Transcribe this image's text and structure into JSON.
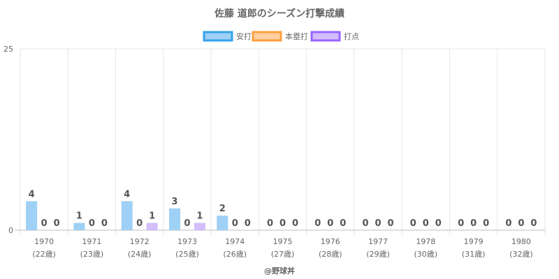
{
  "chart_data": {
    "type": "bar",
    "title": "佐藤 道郎のシーズン打撃成績",
    "categories": [
      "1970",
      "1971",
      "1972",
      "1973",
      "1974",
      "1975",
      "1976",
      "1977",
      "1978",
      "1979",
      "1980"
    ],
    "ages": [
      "(22歳)",
      "(23歳)",
      "(24歳)",
      "(25歳)",
      "(26歳)",
      "(27歳)",
      "(28歳)",
      "(29歳)",
      "(30歳)",
      "(31歳)",
      "(32歳)"
    ],
    "series": [
      {
        "name": "安打",
        "values": [
          4,
          1,
          4,
          3,
          2,
          0,
          0,
          0,
          0,
          0,
          0
        ],
        "fill": "#9fd0f5",
        "stroke": "#36a2eb"
      },
      {
        "name": "本塁打",
        "values": [
          0,
          0,
          0,
          0,
          0,
          0,
          0,
          0,
          0,
          0,
          0
        ],
        "fill": "#ffcf9f",
        "stroke": "#ff9f40"
      },
      {
        "name": "打点",
        "values": [
          0,
          0,
          1,
          1,
          0,
          0,
          0,
          0,
          0,
          0,
          0
        ],
        "fill": "#d3bdfb",
        "stroke": "#9966ff"
      }
    ],
    "ylim": [
      0,
      25
    ],
    "yticks": [
      "0",
      "25"
    ],
    "legend": "top",
    "grid": true
  },
  "footer": "@野球丼"
}
